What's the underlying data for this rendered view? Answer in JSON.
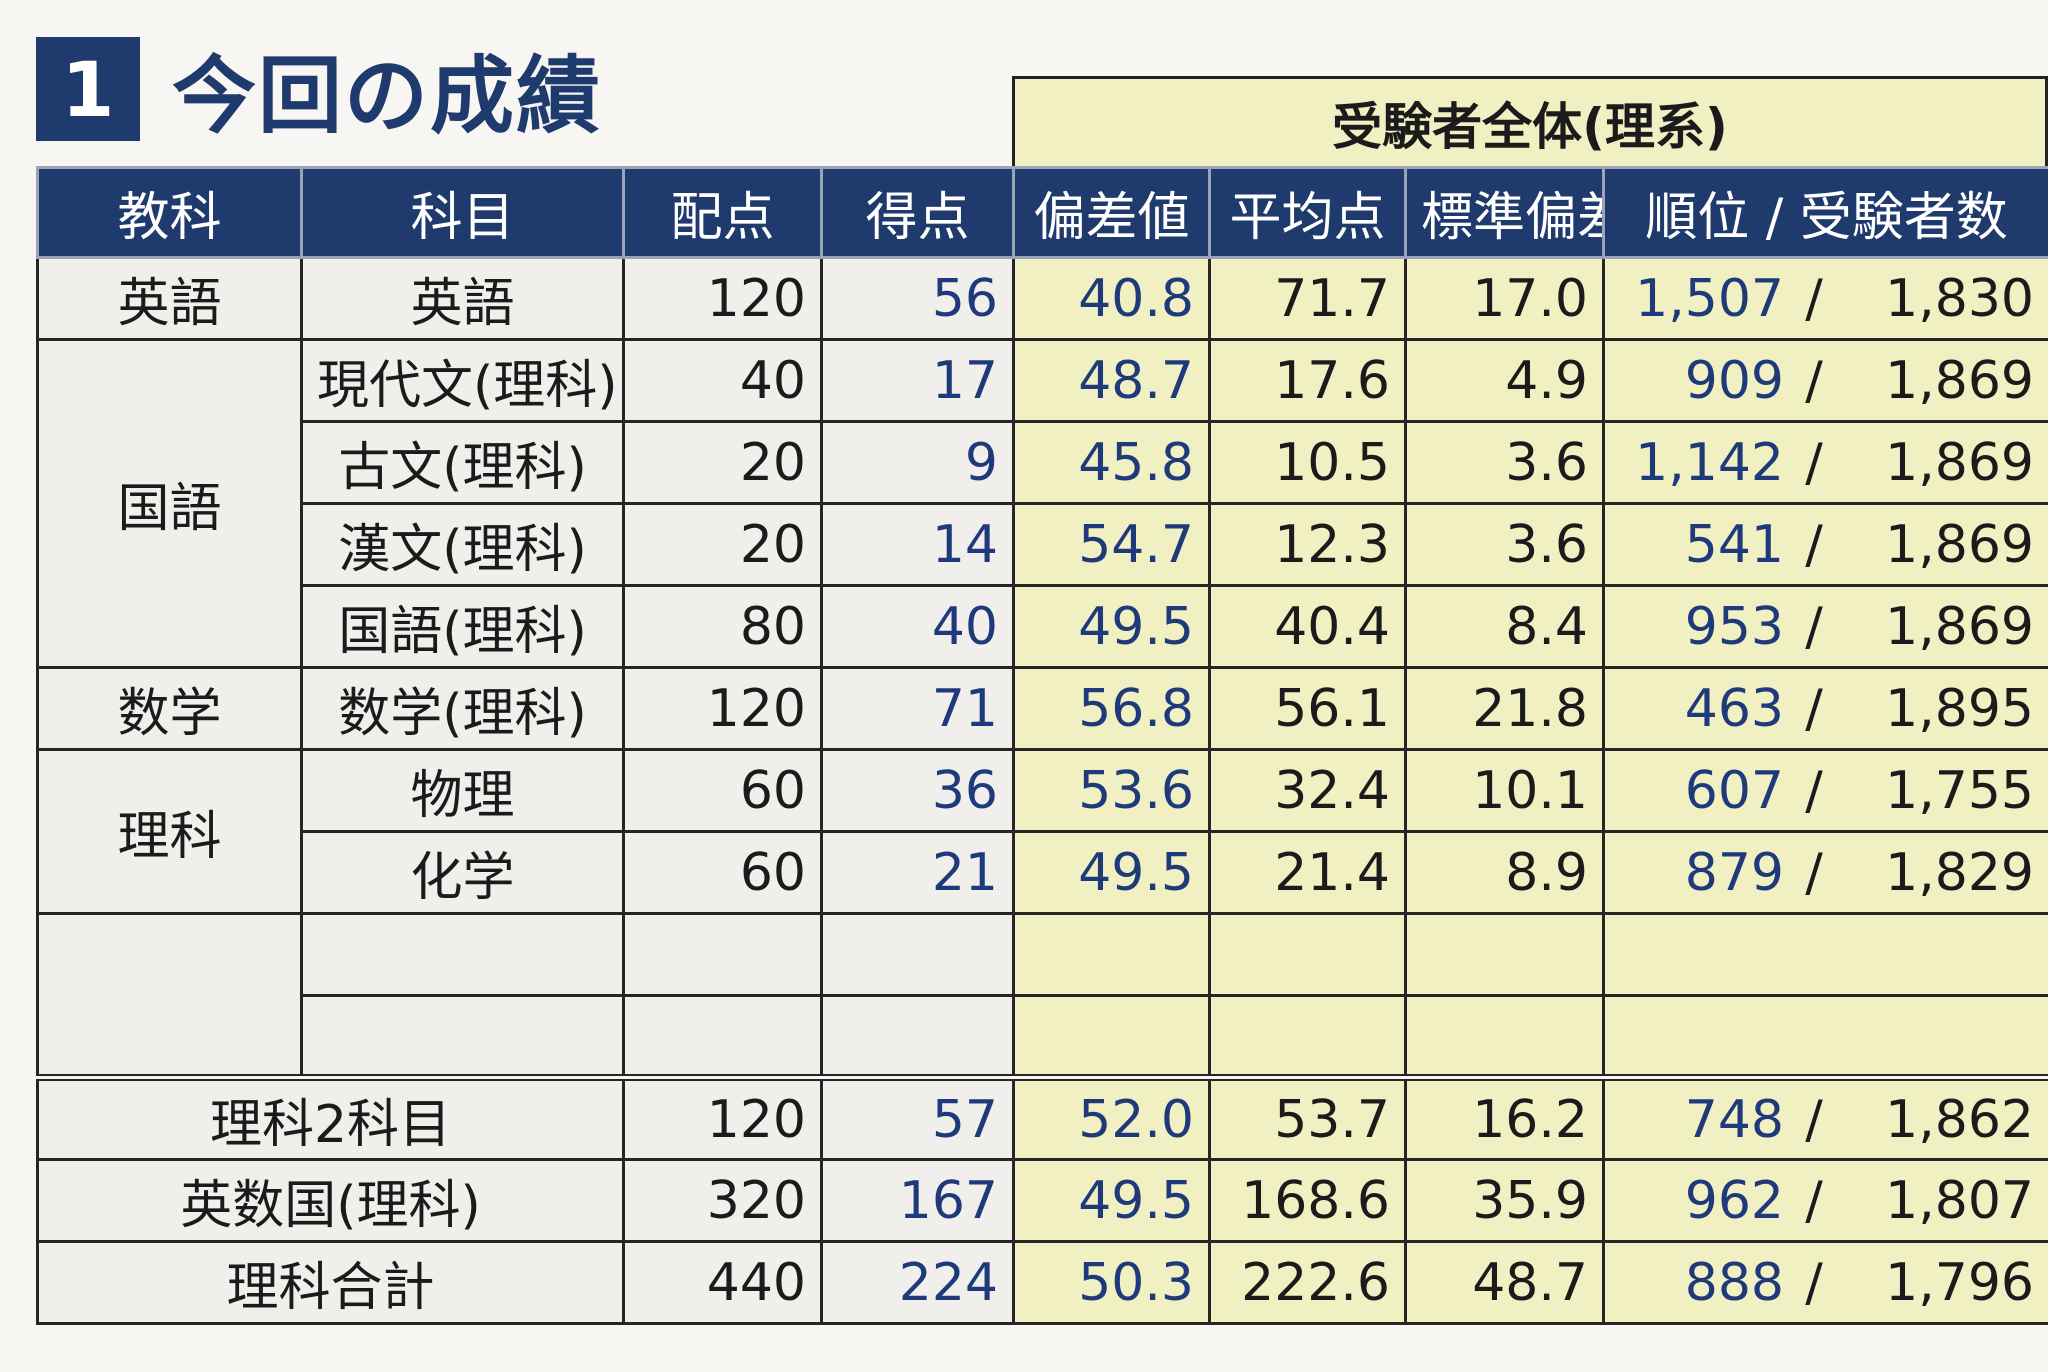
{
  "section": {
    "number": "1",
    "title": "今回の成績"
  },
  "group_header": "受験者全体(理系)",
  "columns": [
    "教科",
    "科目",
    "配点",
    "得点",
    "偏差値",
    "平均点",
    "標準偏差",
    "順位 / 受験者数"
  ],
  "rows": [
    {
      "category": "英語",
      "subject": "英語",
      "max": "120",
      "score": "56",
      "dev": "40.8",
      "avg": "71.7",
      "sd": "17.0",
      "rank": "1,507",
      "slash": "/",
      "total": "1,830"
    },
    {
      "category": "国語",
      "subject": "現代文(理科)",
      "max": "40",
      "score": "17",
      "dev": "48.7",
      "avg": "17.6",
      "sd": "4.9",
      "rank": "909",
      "slash": "/",
      "total": "1,869"
    },
    {
      "subject": "古文(理科)",
      "max": "20",
      "score": "9",
      "dev": "45.8",
      "avg": "10.5",
      "sd": "3.6",
      "rank": "1,142",
      "slash": "/",
      "total": "1,869"
    },
    {
      "subject": "漢文(理科)",
      "max": "20",
      "score": "14",
      "dev": "54.7",
      "avg": "12.3",
      "sd": "3.6",
      "rank": "541",
      "slash": "/",
      "total": "1,869"
    },
    {
      "subject": "国語(理科)",
      "max": "80",
      "score": "40",
      "dev": "49.5",
      "avg": "40.4",
      "sd": "8.4",
      "rank": "953",
      "slash": "/",
      "total": "1,869"
    },
    {
      "category": "数学",
      "subject": "数学(理科)",
      "max": "120",
      "score": "71",
      "dev": "56.8",
      "avg": "56.1",
      "sd": "21.8",
      "rank": "463",
      "slash": "/",
      "total": "1,895"
    },
    {
      "category": "理科",
      "subject": "物理",
      "max": "60",
      "score": "36",
      "dev": "53.6",
      "avg": "32.4",
      "sd": "10.1",
      "rank": "607",
      "slash": "/",
      "total": "1,755"
    },
    {
      "subject": "化学",
      "max": "60",
      "score": "21",
      "dev": "49.5",
      "avg": "21.4",
      "sd": "8.9",
      "rank": "879",
      "slash": "/",
      "total": "1,829"
    }
  ],
  "totals": [
    {
      "label": "理科2科目",
      "max": "120",
      "score": "57",
      "dev": "52.0",
      "avg": "53.7",
      "sd": "16.2",
      "rank": "748",
      "slash": "/",
      "total": "1,862"
    },
    {
      "label": "英数国(理科)",
      "max": "320",
      "score": "167",
      "dev": "49.5",
      "avg": "168.6",
      "sd": "35.9",
      "rank": "962",
      "slash": "/",
      "total": "1,807"
    },
    {
      "label": "理科合計",
      "max": "440",
      "score": "224",
      "dev": "50.3",
      "avg": "222.6",
      "sd": "48.7",
      "rank": "888",
      "slash": "/",
      "total": "1,796"
    }
  ]
}
